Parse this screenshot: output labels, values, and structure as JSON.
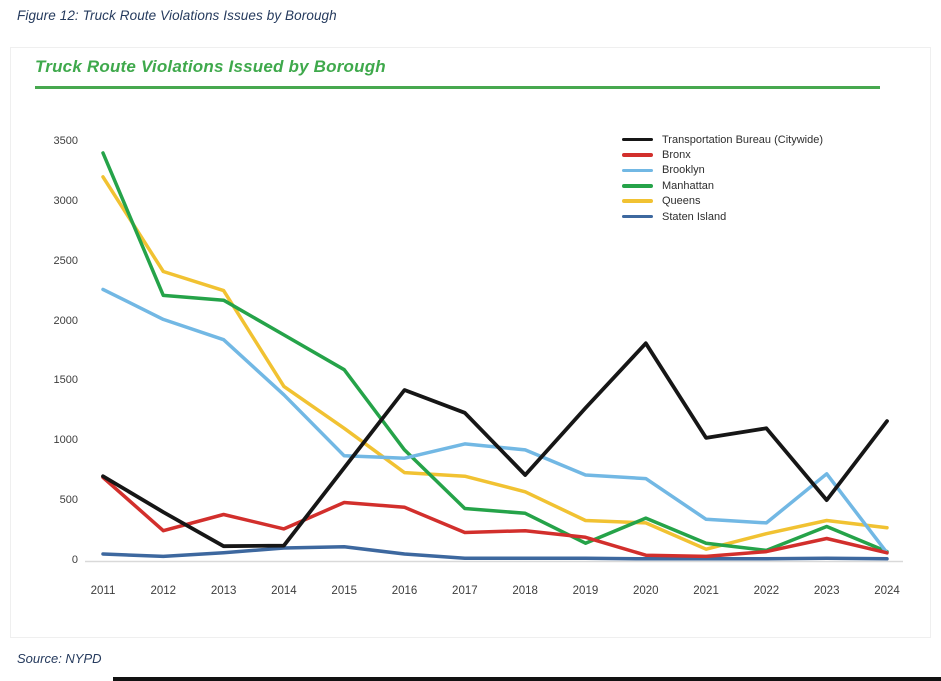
{
  "figure_caption": "Figure 12: Truck Route Violations Issues by Borough",
  "source": "Source: NYPD",
  "colors": {
    "title_green": "#3fa94c",
    "caption_navy": "#263b5e",
    "zero_axis": "#d9d9d9"
  },
  "chart_data": {
    "type": "line",
    "title": "Truck Route Violations Issued by Borough",
    "xlabel": "",
    "ylabel": "",
    "x": [
      2011,
      2012,
      2013,
      2014,
      2015,
      2016,
      2017,
      2018,
      2019,
      2020,
      2021,
      2022,
      2023,
      2024
    ],
    "y_ticks": [
      0,
      500,
      1000,
      1500,
      2000,
      2500,
      3000,
      3500
    ],
    "ylim": [
      0,
      3500
    ],
    "grid": "zero-axis-only",
    "legend_position": "top-right",
    "series": [
      {
        "name": "Transportation Bureau (Citywide)",
        "color": "#161616",
        "values": [
          700,
          400,
          115,
          120,
          770,
          1420,
          1230,
          710,
          1270,
          1810,
          1020,
          1100,
          500,
          1160
        ]
      },
      {
        "name": "Bronx",
        "color": "#d22f2c",
        "values": [
          690,
          245,
          380,
          260,
          480,
          440,
          230,
          245,
          190,
          40,
          30,
          70,
          180,
          60
        ]
      },
      {
        "name": "Brooklyn",
        "color": "#72b8e4",
        "values": [
          2260,
          2010,
          1840,
          1380,
          870,
          850,
          970,
          920,
          710,
          680,
          340,
          310,
          720,
          60
        ]
      },
      {
        "name": "Manhattan",
        "color": "#25a349",
        "values": [
          3400,
          2210,
          2170,
          1880,
          1590,
          920,
          430,
          390,
          140,
          350,
          140,
          80,
          280,
          70
        ]
      },
      {
        "name": "Queens",
        "color": "#f1c232",
        "values": [
          3200,
          2410,
          2250,
          1450,
          1100,
          730,
          700,
          570,
          330,
          310,
          90,
          220,
          330,
          270
        ]
      },
      {
        "name": "Staten Island",
        "color": "#3d689f",
        "values": [
          50,
          30,
          60,
          100,
          110,
          50,
          15,
          15,
          15,
          10,
          10,
          10,
          15,
          10
        ]
      }
    ]
  }
}
